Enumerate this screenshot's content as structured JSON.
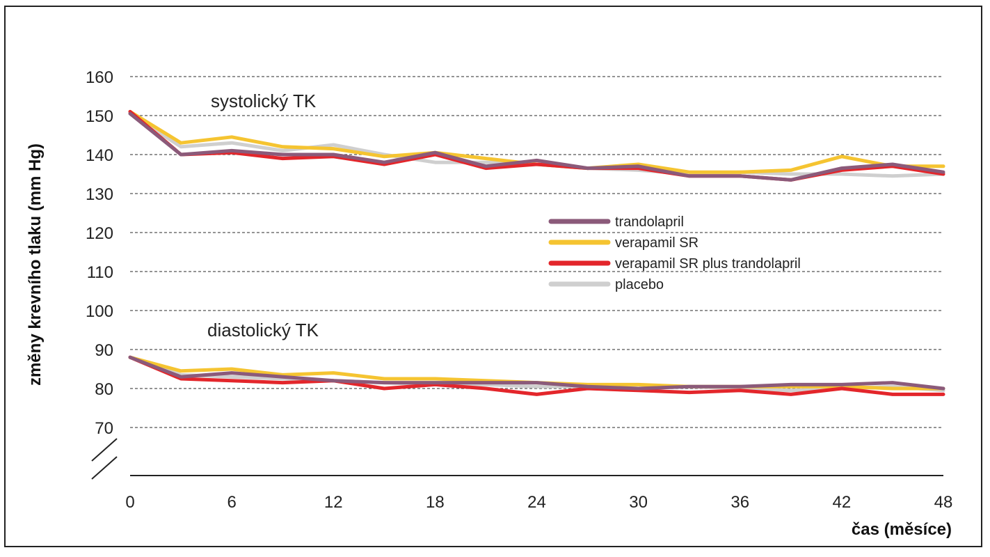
{
  "chart_data": {
    "type": "line",
    "xlabel": "čas (měsíce)",
    "ylabel": "změny krevního tlaku (mm Hg)",
    "x_ticks": [
      0,
      6,
      12,
      18,
      24,
      30,
      36,
      42,
      48
    ],
    "y_ticks": [
      70,
      80,
      90,
      100,
      110,
      120,
      130,
      140,
      150,
      160
    ],
    "xlim": [
      0,
      48
    ],
    "ylim": [
      60,
      160
    ],
    "axis_break": true,
    "grid": "horizontal dashed",
    "legend_placement": "center-right",
    "annotations": [
      {
        "text": "systolický TK"
      },
      {
        "text": "diastolický TK"
      }
    ],
    "x": [
      0,
      3,
      6,
      9,
      12,
      15,
      18,
      21,
      24,
      27,
      30,
      33,
      36,
      39,
      42,
      45,
      48
    ],
    "series": [
      {
        "name": "trandolapril",
        "color": "#8b5a7a",
        "group": "systolic",
        "values": [
          150.5,
          140,
          141,
          140,
          140,
          138,
          140.5,
          137,
          138.5,
          136.5,
          137,
          134.5,
          134.5,
          133.5,
          136.5,
          137.5,
          135.5
        ]
      },
      {
        "name": "verapamil SR",
        "color": "#f5c431",
        "group": "systolic",
        "values": [
          151,
          143,
          144.5,
          142,
          141.5,
          139.5,
          140.5,
          139,
          137.5,
          136.5,
          137.5,
          135.5,
          135.5,
          136,
          139.5,
          137,
          137
        ]
      },
      {
        "name": "verapamil SR plus trandolapril",
        "color": "#e3262b",
        "group": "systolic",
        "values": [
          151,
          140,
          140.5,
          139,
          139.5,
          137.5,
          140,
          136.5,
          137.5,
          136.5,
          136.5,
          134.5,
          134.5,
          133.5,
          136,
          137,
          135
        ]
      },
      {
        "name": "placebo",
        "color": "#cfcfcf",
        "group": "systolic",
        "values": [
          150.5,
          142,
          143,
          141,
          142.5,
          140,
          138,
          138,
          137.5,
          136.5,
          136,
          135,
          135.5,
          135,
          135,
          134.5,
          135
        ]
      },
      {
        "name": "trandolapril",
        "color": "#8b5a7a",
        "group": "diastolic",
        "values": [
          88,
          83,
          84,
          83,
          82,
          81.5,
          81.5,
          81.5,
          81.5,
          80.5,
          80,
          80.5,
          80.5,
          81,
          81,
          81.5,
          80
        ]
      },
      {
        "name": "verapamil SR",
        "color": "#f5c431",
        "group": "diastolic",
        "values": [
          88,
          84.5,
          85,
          83.5,
          84,
          82.5,
          82.5,
          82,
          81.5,
          81,
          81,
          80.5,
          80.5,
          80.5,
          80.5,
          80,
          80
        ]
      },
      {
        "name": "verapamil SR plus trandolapril",
        "color": "#e3262b",
        "group": "diastolic",
        "values": [
          88,
          82.5,
          82,
          81.5,
          82,
          80,
          81,
          80,
          78.5,
          80,
          79.5,
          79,
          79.5,
          78.5,
          80,
          78.5,
          78.5
        ]
      },
      {
        "name": "placebo",
        "color": "#cfcfcf",
        "group": "diastolic",
        "values": [
          88,
          83.5,
          83,
          82.5,
          82,
          81.5,
          81,
          81,
          80.5,
          80.5,
          80,
          80.5,
          80,
          79.5,
          80,
          80.5,
          79.5
        ]
      }
    ],
    "legend": [
      {
        "label": "trandolapril",
        "color": "#8b5a7a"
      },
      {
        "label": "verapamil SR",
        "color": "#f5c431"
      },
      {
        "label": "verapamil SR plus trandolapril",
        "color": "#e3262b"
      },
      {
        "label": "placebo",
        "color": "#cfcfcf"
      }
    ]
  }
}
